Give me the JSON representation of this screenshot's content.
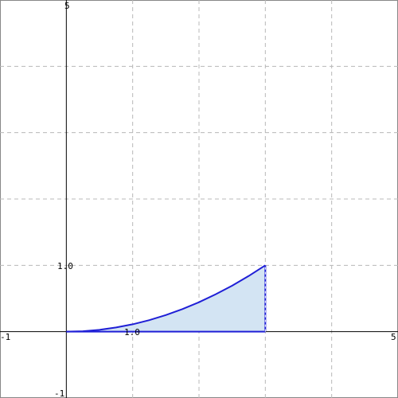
{
  "chart_data": {
    "type": "area",
    "title": "",
    "xlabel": "",
    "ylabel": "",
    "xlim": [
      -1,
      5
    ],
    "ylim": [
      -1,
      5
    ],
    "grid": true,
    "grid_step": 1,
    "axis_end_labels": {
      "x_min": "-1",
      "x_max": "5",
      "y_min": "-1",
      "y_max": "5"
    },
    "tick_labels": {
      "x_one": "1.0",
      "y_one": "1.0"
    },
    "series": [
      {
        "x": [
          0,
          0.25,
          0.5,
          0.75,
          1.0,
          1.25,
          1.5,
          1.75,
          2.0,
          2.25,
          2.5,
          2.75,
          3.0
        ],
        "values": [
          0,
          0.007,
          0.028,
          0.063,
          0.111,
          0.174,
          0.25,
          0.34,
          0.444,
          0.563,
          0.694,
          0.84,
          1.0
        ]
      }
    ],
    "shaded_region": {
      "from_x": 0,
      "to_x": 3,
      "baseline": 0
    },
    "colors": {
      "line": "#1f1fd6",
      "fill": "#d3e4f3",
      "grid": "#b8b8b8",
      "axis": "#000000",
      "border": "#888888"
    }
  }
}
